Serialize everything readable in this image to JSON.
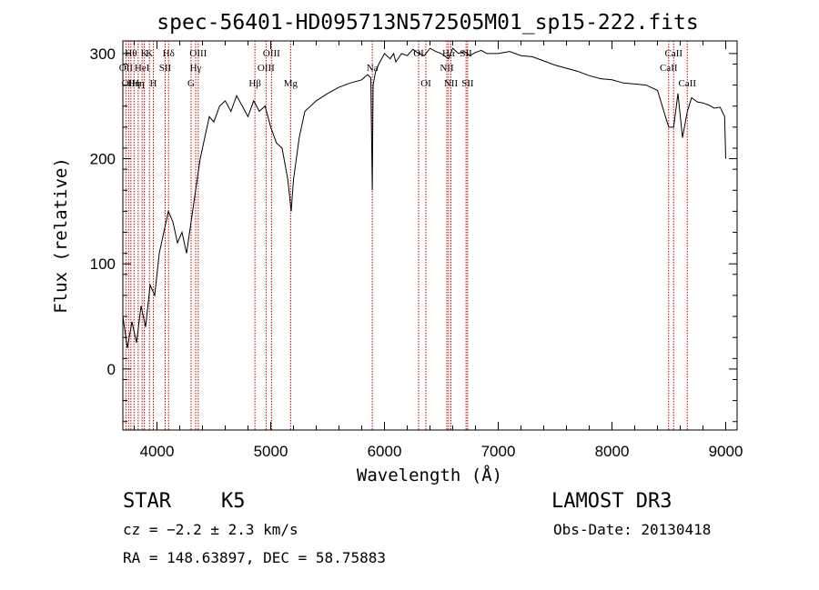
{
  "chart_data": {
    "type": "line",
    "title": "spec-56401-HD095713N572505M01_sp15-222.fits",
    "xlabel": "Wavelength (Å)",
    "ylabel": "Flux (relative)",
    "xlim": [
      3700,
      9100
    ],
    "ylim": [
      -58,
      312
    ],
    "xticks": [
      4000,
      5000,
      6000,
      7000,
      8000,
      9000
    ],
    "yticks": [
      0,
      100,
      200,
      300
    ],
    "grid": false,
    "series": [
      {
        "name": "flux",
        "x": [
          3700,
          3740,
          3780,
          3820,
          3860,
          3900,
          3940,
          3980,
          4020,
          4060,
          4100,
          4140,
          4180,
          4220,
          4260,
          4300,
          4340,
          4380,
          4420,
          4460,
          4500,
          4550,
          4600,
          4650,
          4700,
          4750,
          4800,
          4850,
          4900,
          4950,
          5000,
          5050,
          5100,
          5150,
          5180,
          5200,
          5250,
          5300,
          5400,
          5500,
          5600,
          5700,
          5800,
          5850,
          5880,
          5893,
          5900,
          5920,
          5950,
          6000,
          6050,
          6080,
          6100,
          6150,
          6200,
          6250,
          6300,
          6350,
          6400,
          6450,
          6500,
          6563,
          6600,
          6650,
          6700,
          6750,
          6800,
          6850,
          6900,
          7000,
          7100,
          7200,
          7300,
          7400,
          7500,
          7600,
          7700,
          7800,
          7900,
          8000,
          8100,
          8200,
          8300,
          8400,
          8498,
          8542,
          8580,
          8620,
          8662,
          8700,
          8750,
          8800,
          8850,
          8900,
          8950,
          8990,
          9000
        ],
        "values": [
          50,
          20,
          45,
          25,
          60,
          40,
          80,
          70,
          110,
          130,
          150,
          140,
          120,
          130,
          110,
          140,
          170,
          200,
          220,
          240,
          235,
          250,
          255,
          245,
          260,
          250,
          240,
          255,
          245,
          250,
          230,
          215,
          210,
          180,
          150,
          180,
          220,
          245,
          255,
          262,
          268,
          272,
          275,
          280,
          277,
          170,
          270,
          282,
          290,
          300,
          295,
          300,
          292,
          300,
          298,
          304,
          300,
          298,
          305,
          302,
          300,
          295,
          305,
          300,
          302,
          298,
          301,
          303,
          300,
          300,
          302,
          298,
          297,
          293,
          289,
          286,
          283,
          279,
          276,
          275,
          272,
          271,
          270,
          265,
          230,
          230,
          262,
          220,
          245,
          258,
          254,
          253,
          251,
          248,
          249,
          240,
          200
        ]
      }
    ],
    "lines": [
      {
        "wavelength": 3727,
        "label": "OII",
        "row": 2
      },
      {
        "wavelength": 3750,
        "label": "OII",
        "row": 3
      },
      {
        "wavelength": 3771,
        "label": "Hθ",
        "row": 1
      },
      {
        "wavelength": 3798,
        "label": "Hη",
        "row": 3
      },
      {
        "wavelength": 3835,
        "label": "Hη",
        "row": 3
      },
      {
        "wavelength": 3869,
        "label": "HeI",
        "row": 2
      },
      {
        "wavelength": 3889,
        "label": "K",
        "row": 1
      },
      {
        "wavelength": 3934,
        "label": "K",
        "row": 1
      },
      {
        "wavelength": 3968,
        "label": "H",
        "row": 3
      },
      {
        "wavelength": 4072,
        "label": "SII",
        "row": 2
      },
      {
        "wavelength": 4102,
        "label": "Hδ",
        "row": 1
      },
      {
        "wavelength": 4300,
        "label": "G",
        "row": 3
      },
      {
        "wavelength": 4340,
        "label": "Hγ",
        "row": 2
      },
      {
        "wavelength": 4363,
        "label": "OIII",
        "row": 1
      },
      {
        "wavelength": 4861,
        "label": "Hβ",
        "row": 3
      },
      {
        "wavelength": 4959,
        "label": "OIII",
        "row": 2
      },
      {
        "wavelength": 5007,
        "label": "OIII",
        "row": 1
      },
      {
        "wavelength": 5175,
        "label": "Mg",
        "row": 3
      },
      {
        "wavelength": 5893,
        "label": "Na",
        "row": 2
      },
      {
        "wavelength": 6300,
        "label": "OI",
        "row": 1
      },
      {
        "wavelength": 6364,
        "label": "OI",
        "row": 3
      },
      {
        "wavelength": 6548,
        "label": "NII",
        "row": 2
      },
      {
        "wavelength": 6563,
        "label": "Hα",
        "row": 1
      },
      {
        "wavelength": 6584,
        "label": "NII",
        "row": 3
      },
      {
        "wavelength": 6717,
        "label": "SII",
        "row": 1
      },
      {
        "wavelength": 6731,
        "label": "SII",
        "row": 3
      },
      {
        "wavelength": 8498,
        "label": "CaII",
        "row": 2
      },
      {
        "wavelength": 8542,
        "label": "CaII",
        "row": 1
      },
      {
        "wavelength": 8662,
        "label": "CaII",
        "row": 3
      }
    ]
  },
  "info": {
    "object_class": "STAR",
    "subclass": "K5",
    "survey": "LAMOST DR3",
    "cz": "cz = −2.2 ± 2.3 km/s",
    "obs_date": "Obs-Date: 20130418",
    "coords": "RA = 148.63897, DEC =  58.75883"
  }
}
